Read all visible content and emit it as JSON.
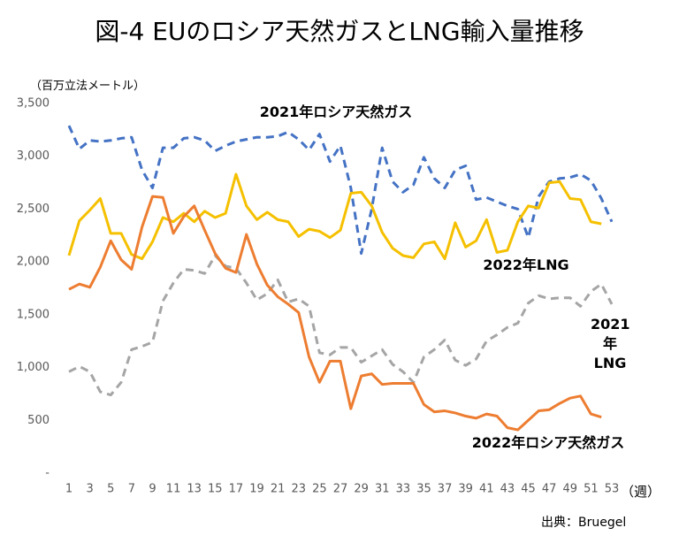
{
  "chart_data": {
    "type": "line",
    "title": "図-4 EUのロシア天然ガスとLNG輸入量推移",
    "y_label": "（百万立法メートル）",
    "x_label": "（週）",
    "source": "出典：Bruegel",
    "x": [
      1,
      2,
      3,
      4,
      5,
      6,
      7,
      8,
      9,
      10,
      11,
      12,
      13,
      14,
      15,
      16,
      17,
      18,
      19,
      20,
      21,
      22,
      23,
      24,
      25,
      26,
      27,
      28,
      29,
      30,
      31,
      32,
      33,
      34,
      35,
      36,
      37,
      38,
      39,
      40,
      41,
      42,
      43,
      44,
      45,
      46,
      47,
      48,
      49,
      50,
      51,
      52,
      53
    ],
    "xlim": [
      1,
      53
    ],
    "xticks": [
      1,
      3,
      5,
      7,
      9,
      11,
      13,
      15,
      17,
      19,
      21,
      23,
      25,
      27,
      29,
      31,
      33,
      35,
      37,
      39,
      41,
      43,
      45,
      47,
      49,
      51,
      53
    ],
    "ylim": [
      0,
      3500
    ],
    "yticks": [
      {
        "value": 0,
        "label": "-"
      },
      {
        "value": 500,
        "label": "500"
      },
      {
        "value": 1000,
        "label": "1,000"
      },
      {
        "value": 1500,
        "label": "1,500"
      },
      {
        "value": 2000,
        "label": "2,000"
      },
      {
        "value": 2500,
        "label": "2,500"
      },
      {
        "value": 3000,
        "label": "3,000"
      },
      {
        "value": 3500,
        "label": "3,500"
      }
    ],
    "grid": false,
    "series": [
      {
        "name": "2021年ロシア天然ガス",
        "color": "#4472c4",
        "dashed": true,
        "values": [
          3290,
          3070,
          3150,
          3140,
          3150,
          3170,
          3180,
          2870,
          2700,
          3080,
          3080,
          3170,
          3180,
          3150,
          3050,
          3100,
          3140,
          3160,
          3180,
          3180,
          3190,
          3230,
          3160,
          3060,
          3210,
          2950,
          3100,
          2700,
          2080,
          2500,
          3080,
          2760,
          2660,
          2730,
          2990,
          2790,
          2700,
          2870,
          2910,
          2590,
          2610,
          2570,
          2530,
          2500,
          2230,
          2620,
          2760,
          2790,
          2800,
          2830,
          2770,
          2600,
          2380
        ]
      },
      {
        "name": "2022年LNG",
        "color": "#f5c000",
        "dashed": false,
        "values": [
          2060,
          2390,
          2490,
          2600,
          2270,
          2270,
          2070,
          2030,
          2190,
          2420,
          2380,
          2460,
          2380,
          2480,
          2420,
          2460,
          2830,
          2530,
          2400,
          2470,
          2400,
          2380,
          2240,
          2310,
          2290,
          2230,
          2300,
          2650,
          2660,
          2530,
          2280,
          2130,
          2060,
          2040,
          2170,
          2190,
          2030,
          2370,
          2140,
          2200,
          2400,
          2090,
          2110,
          2380,
          2530,
          2510,
          2750,
          2760,
          2600,
          2590,
          2380,
          2360,
          null
        ]
      },
      {
        "name": "2021年LNG",
        "color": "#a5a5a5",
        "dashed": true,
        "values": [
          960,
          1010,
          960,
          770,
          740,
          860,
          1170,
          1200,
          1240,
          1630,
          1800,
          1930,
          1920,
          1890,
          2060,
          1960,
          1940,
          1800,
          1640,
          1700,
          1830,
          1620,
          1650,
          1580,
          1140,
          1120,
          1190,
          1190,
          1050,
          1110,
          1170,
          1030,
          960,
          860,
          1100,
          1170,
          1260,
          1070,
          1020,
          1080,
          1250,
          1310,
          1380,
          1420,
          1610,
          1680,
          1650,
          1660,
          1660,
          1580,
          1720,
          1790,
          1600
        ]
      },
      {
        "name": "2022年ロシア天然ガス",
        "color": "#ed7d31",
        "dashed": false,
        "values": [
          1740,
          1790,
          1760,
          1950,
          2200,
          2020,
          1930,
          2330,
          2620,
          2610,
          2270,
          2430,
          2530,
          2300,
          2080,
          1940,
          1900,
          2260,
          1980,
          1780,
          1670,
          1600,
          1520,
          1100,
          860,
          1060,
          1060,
          610,
          920,
          940,
          840,
          850,
          850,
          850,
          650,
          580,
          590,
          570,
          540,
          520,
          560,
          540,
          430,
          410,
          500,
          590,
          600,
          660,
          710,
          730,
          560,
          530,
          null
        ]
      }
    ]
  }
}
